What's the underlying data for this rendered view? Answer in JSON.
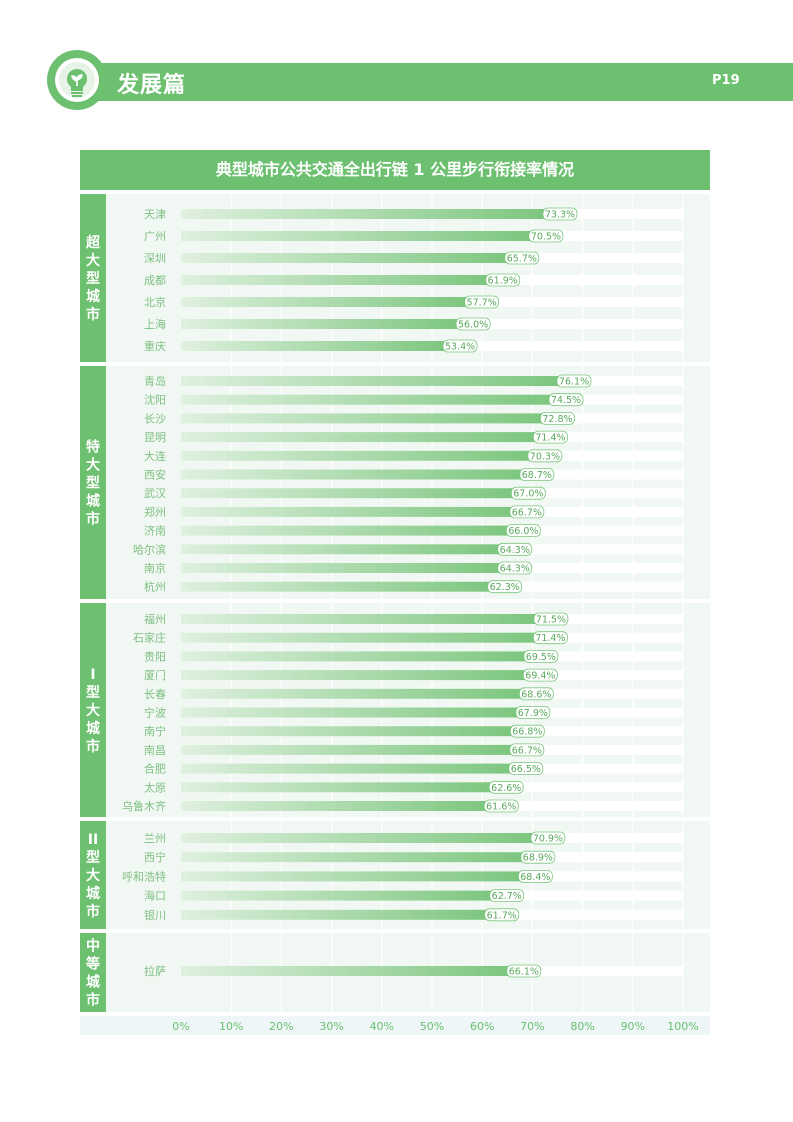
{
  "header": {
    "title": "发展篇",
    "page": "P19",
    "icon": "lightbulb-sprout-icon"
  },
  "colors": {
    "accent": "#6cc070",
    "bar": "#7cc67e",
    "panel": "#f1f8f3",
    "label": "#6cc070"
  },
  "chart_data": {
    "type": "bar",
    "orientation": "horizontal",
    "title": "典型城市公共交通全出行链 1 公里步行衔接率情况",
    "xlim": [
      0,
      100
    ],
    "x_ticks": [
      "0%",
      "10%",
      "20%",
      "30%",
      "40%",
      "50%",
      "60%",
      "70%",
      "80%",
      "90%",
      "100%"
    ],
    "groups": [
      {
        "name": "超大型城市",
        "label_chars": [
          "超",
          "大",
          "型",
          "城",
          "市"
        ],
        "cities": [
          {
            "name": "天津",
            "value": 73.3,
            "label": "73.3%"
          },
          {
            "name": "广州",
            "value": 70.5,
            "label": "70.5%"
          },
          {
            "name": "深圳",
            "value": 65.7,
            "label": "65.7%"
          },
          {
            "name": "成都",
            "value": 61.9,
            "label": "61.9%"
          },
          {
            "name": "北京",
            "value": 57.7,
            "label": "57.7%"
          },
          {
            "name": "上海",
            "value": 56.0,
            "label": "56.0%"
          },
          {
            "name": "重庆",
            "value": 53.4,
            "label": "53.4%"
          }
        ]
      },
      {
        "name": "特大型城市",
        "label_chars": [
          "特",
          "大",
          "型",
          "城",
          "市"
        ],
        "cities": [
          {
            "name": "青岛",
            "value": 76.1,
            "label": "76.1%"
          },
          {
            "name": "沈阳",
            "value": 74.5,
            "label": "74.5%"
          },
          {
            "name": "长沙",
            "value": 72.8,
            "label": "72.8%"
          },
          {
            "name": "昆明",
            "value": 71.4,
            "label": "71.4%"
          },
          {
            "name": "大连",
            "value": 70.3,
            "label": "70.3%"
          },
          {
            "name": "西安",
            "value": 68.7,
            "label": "68.7%"
          },
          {
            "name": "武汉",
            "value": 67.0,
            "label": "67.0%"
          },
          {
            "name": "郑州",
            "value": 66.7,
            "label": "66.7%"
          },
          {
            "name": "济南",
            "value": 66.0,
            "label": "66.0%"
          },
          {
            "name": "哈尔滨",
            "value": 64.3,
            "label": "64.3%"
          },
          {
            "name": "南京",
            "value": 64.3,
            "label": "64.3%"
          },
          {
            "name": "杭州",
            "value": 62.3,
            "label": "62.3%"
          }
        ]
      },
      {
        "name": "I型大城市",
        "label_chars": [
          "I",
          "型",
          "大",
          "城",
          "市"
        ],
        "cities": [
          {
            "name": "福州",
            "value": 71.5,
            "label": "71.5%"
          },
          {
            "name": "石家庄",
            "value": 71.4,
            "label": "71.4%"
          },
          {
            "name": "贵阳",
            "value": 69.5,
            "label": "69.5%"
          },
          {
            "name": "厦门",
            "value": 69.4,
            "label": "69.4%"
          },
          {
            "name": "长春",
            "value": 68.6,
            "label": "68.6%"
          },
          {
            "name": "宁波",
            "value": 67.9,
            "label": "67.9%"
          },
          {
            "name": "南宁",
            "value": 66.8,
            "label": "66.8%"
          },
          {
            "name": "南昌",
            "value": 66.7,
            "label": "66.7%"
          },
          {
            "name": "合肥",
            "value": 66.5,
            "label": "66.5%"
          },
          {
            "name": "太原",
            "value": 62.6,
            "label": "62.6%"
          },
          {
            "name": "乌鲁木齐",
            "value": 61.6,
            "label": "61.6%"
          }
        ]
      },
      {
        "name": "II型大城市",
        "label_chars": [
          "II",
          "型",
          "大",
          "城",
          "市"
        ],
        "cities": [
          {
            "name": "兰州",
            "value": 70.9,
            "label": "70.9%"
          },
          {
            "name": "西宁",
            "value": 68.9,
            "label": "68.9%"
          },
          {
            "name": "呼和浩特",
            "value": 68.4,
            "label": "68.4%"
          },
          {
            "name": "海口",
            "value": 62.7,
            "label": "62.7%"
          },
          {
            "name": "银川",
            "value": 61.7,
            "label": "61.7%"
          }
        ]
      },
      {
        "name": "中等城市",
        "label_chars": [
          "中",
          "等",
          "城",
          "市"
        ],
        "cities": [
          {
            "name": "拉萨",
            "value": 66.1,
            "label": "66.1%"
          }
        ]
      }
    ]
  }
}
